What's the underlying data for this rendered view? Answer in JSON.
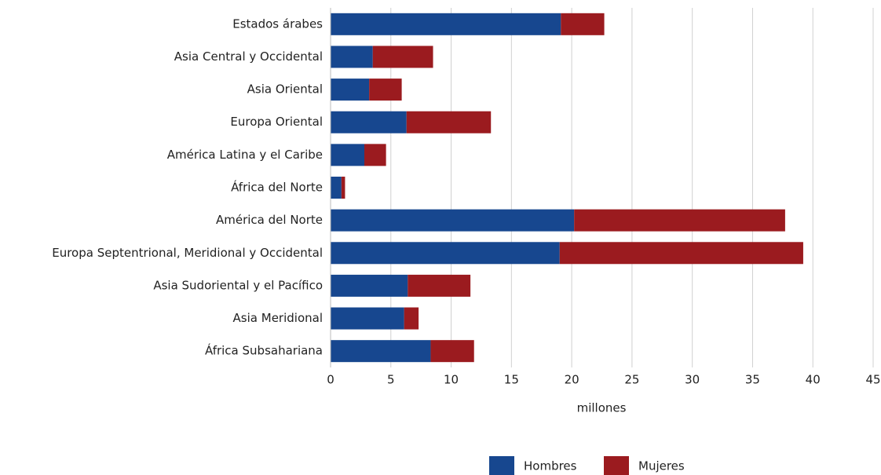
{
  "chart_data": {
    "type": "stacked_barh",
    "categories": [
      "Estados árabes",
      "Asia Central y Occidental",
      "Asia Oriental",
      "Europa Oriental",
      "América Latina y el Caribe",
      "África del Norte",
      "América del Norte",
      "Europa Septentrional, Meridional y Occidental",
      "Asia Sudoriental y el Pacífico",
      "Asia Meridional",
      "África Subsahariana"
    ],
    "series": [
      {
        "name": "Hombres",
        "color": "#17478f",
        "values": [
          19.1,
          3.5,
          3.2,
          6.3,
          2.8,
          0.9,
          20.2,
          19.0,
          6.4,
          6.1,
          8.3
        ]
      },
      {
        "name": "Mujeres",
        "color": "#9b1b1f",
        "values": [
          3.6,
          5.0,
          2.7,
          7.0,
          1.8,
          0.3,
          17.5,
          20.2,
          5.2,
          1.2,
          3.6
        ]
      }
    ],
    "xlabel": "millones",
    "xlim": [
      0,
      45
    ],
    "xticks": [
      0,
      5,
      10,
      15,
      20,
      25,
      30,
      35,
      40,
      45
    ],
    "grid": true,
    "legend": "bottom"
  }
}
